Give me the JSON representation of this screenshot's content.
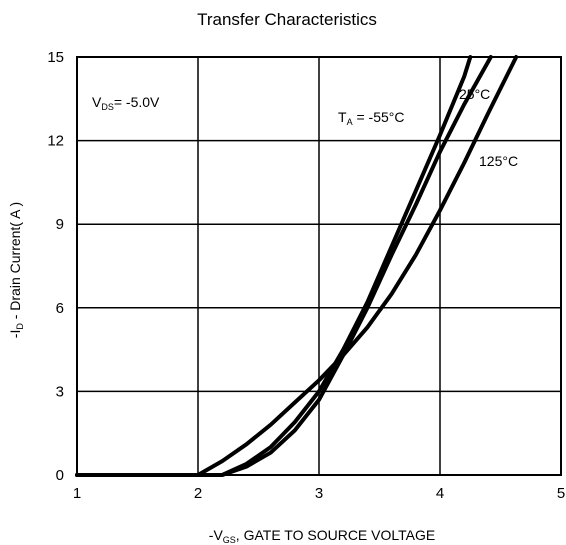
{
  "chart_data": {
    "type": "line",
    "title": "Transfer Characteristics",
    "xlabel": "-V",
    "xlabel_sub": "GS",
    "xlabel_rest": ", GATE TO SOURCE VOLTAGE",
    "ylabel": "-I",
    "ylabel_sub": "D",
    "ylabel_rest": " - Drain Current( A )",
    "xlim": [
      1,
      5
    ],
    "ylim": [
      0,
      15
    ],
    "xticks": [
      1,
      2,
      3,
      4,
      5
    ],
    "yticks": [
      0,
      3,
      6,
      9,
      12,
      15
    ],
    "grid": true,
    "annotations": {
      "vds": "V",
      "vds_sub": "DS",
      "vds_rest": "= -5.0V",
      "ta": "T",
      "ta_sub": "A",
      "ta_rest": " = -55°C",
      "t25": "25°C",
      "t125": "125°C"
    },
    "series": [
      {
        "name": "-55°C",
        "x": [
          1.0,
          2.2,
          2.4,
          2.6,
          2.8,
          3.0,
          3.2,
          3.4,
          3.6,
          3.8,
          4.0,
          4.2,
          4.25
        ],
        "y": [
          0.0,
          0.0,
          0.4,
          1.0,
          1.9,
          3.0,
          4.5,
          6.2,
          8.2,
          10.2,
          12.2,
          14.3,
          15.0
        ]
      },
      {
        "name": "25°C",
        "x": [
          1.0,
          2.2,
          2.4,
          2.6,
          2.8,
          3.0,
          3.2,
          3.4,
          3.6,
          3.8,
          4.0,
          4.2,
          4.42
        ],
        "y": [
          0.0,
          0.0,
          0.3,
          0.8,
          1.6,
          2.7,
          4.3,
          6.0,
          7.9,
          9.7,
          11.6,
          13.3,
          15.0
        ]
      },
      {
        "name": "125°C",
        "x": [
          1.0,
          2.0,
          2.2,
          2.4,
          2.6,
          2.8,
          3.0,
          3.2,
          3.4,
          3.6,
          3.8,
          4.0,
          4.2,
          4.4,
          4.63
        ],
        "y": [
          0.0,
          0.0,
          0.5,
          1.1,
          1.8,
          2.6,
          3.4,
          4.3,
          5.3,
          6.5,
          7.9,
          9.5,
          11.2,
          13.0,
          15.0
        ]
      }
    ]
  }
}
